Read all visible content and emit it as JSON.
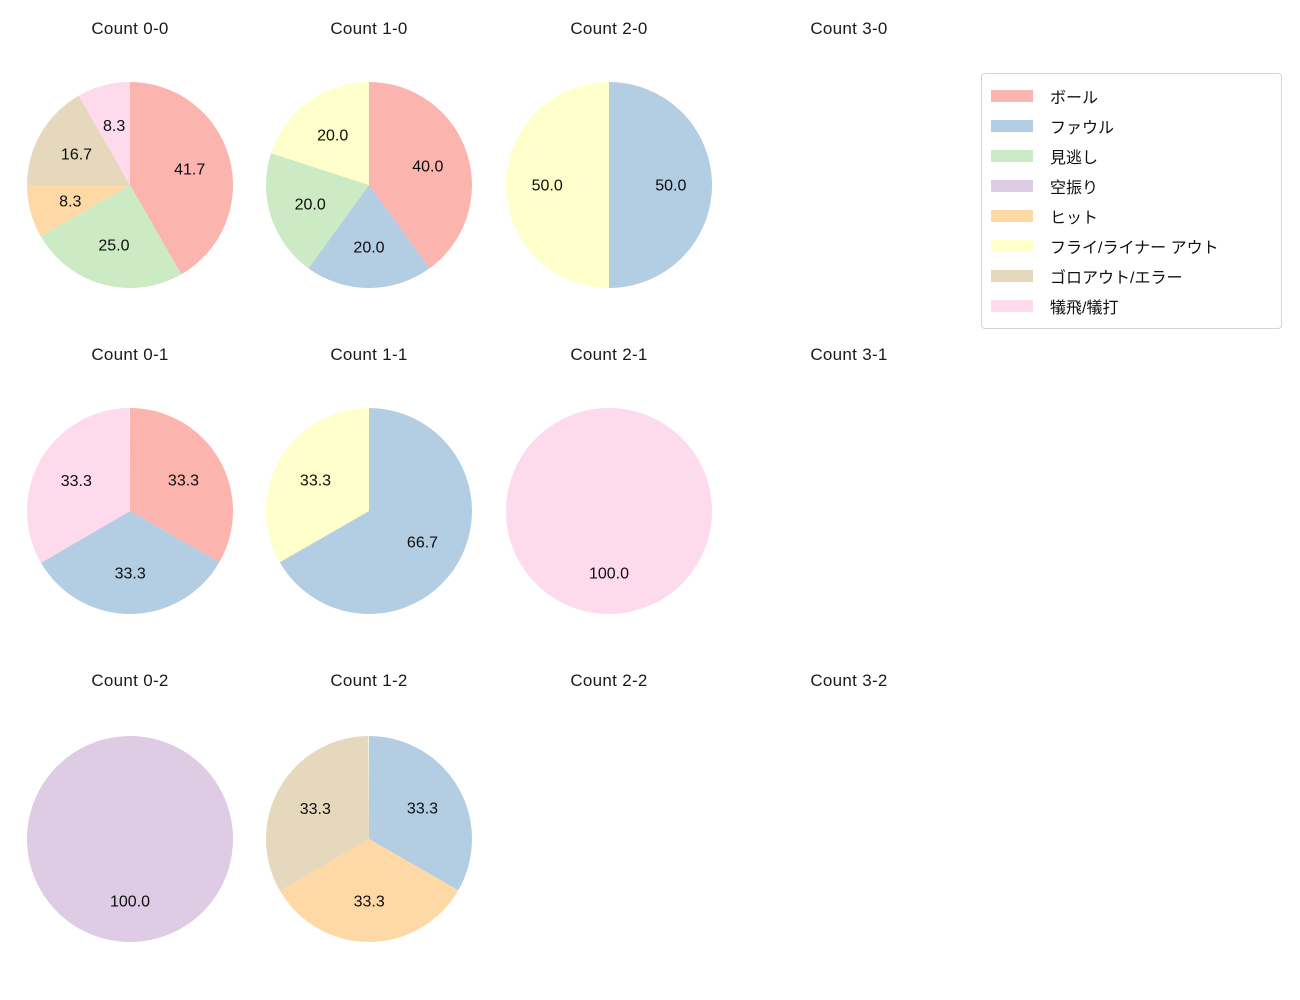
{
  "figure": {
    "background": "#ffffff",
    "text_color": "#1a1a1a"
  },
  "palette": {
    "ボール": "#fbb4ae",
    "ファウル": "#b3cde3",
    "見逃し": "#ccebc5",
    "空振り": "#decbe4",
    "ヒット": "#fed9a6",
    "フライ/ライナー アウト": "#ffffcc",
    "ゴロアウト/エラー": "#e5d8bd",
    "犠飛/犠打": "#fddaec"
  },
  "legend": {
    "position": "top-right",
    "items": [
      {
        "label": "ボール",
        "color": "#fbb4ae"
      },
      {
        "label": "ファウル",
        "color": "#b3cde3"
      },
      {
        "label": "見逃し",
        "color": "#ccebc5"
      },
      {
        "label": "空振り",
        "color": "#decbe4"
      },
      {
        "label": "ヒット",
        "color": "#fed9a6"
      },
      {
        "label": "フライ/ライナー アウト",
        "color": "#ffffcc"
      },
      {
        "label": "ゴロアウト/エラー",
        "color": "#e5d8bd"
      },
      {
        "label": "犠飛/犠打",
        "color": "#fddaec"
      }
    ]
  },
  "chart_data": [
    {
      "type": "pie",
      "title": "Count 0-0",
      "start": "top",
      "direction": "clockwise",
      "slices": [
        {
          "category": "ボール",
          "value": 41.7,
          "label": "41.7",
          "color": "#fbb4ae"
        },
        {
          "category": "見逃し",
          "value": 25.0,
          "label": "25.0",
          "color": "#ccebc5"
        },
        {
          "category": "ヒット",
          "value": 8.3,
          "label": "8.3",
          "color": "#fed9a6"
        },
        {
          "category": "ゴロアウト/エラー",
          "value": 16.7,
          "label": "16.7",
          "color": "#e5d8bd"
        },
        {
          "category": "犠飛/犠打",
          "value": 8.3,
          "label": "8.3",
          "color": "#fddaec"
        }
      ]
    },
    {
      "type": "pie",
      "title": "Count 1-0",
      "start": "top",
      "direction": "clockwise",
      "slices": [
        {
          "category": "ボール",
          "value": 40.0,
          "label": "40.0",
          "color": "#fbb4ae"
        },
        {
          "category": "ファウル",
          "value": 20.0,
          "label": "20.0",
          "color": "#b3cde3"
        },
        {
          "category": "見逃し",
          "value": 20.0,
          "label": "20.0",
          "color": "#ccebc5"
        },
        {
          "category": "フライ/ライナー アウト",
          "value": 20.0,
          "label": "20.0",
          "color": "#ffffcc"
        }
      ]
    },
    {
      "type": "pie",
      "title": "Count 2-0",
      "start": "top",
      "direction": "clockwise",
      "slices": [
        {
          "category": "ファウル",
          "value": 50.0,
          "label": "50.0",
          "color": "#b3cde3"
        },
        {
          "category": "フライ/ライナー アウト",
          "value": 50.0,
          "label": "50.0",
          "color": "#ffffcc"
        }
      ]
    },
    {
      "type": "pie",
      "title": "Count 3-0",
      "start": "top",
      "direction": "clockwise",
      "slices": []
    },
    {
      "type": "pie",
      "title": "Count 0-1",
      "start": "top",
      "direction": "clockwise",
      "slices": [
        {
          "category": "ボール",
          "value": 33.3,
          "label": "33.3",
          "color": "#fbb4ae"
        },
        {
          "category": "ファウル",
          "value": 33.3,
          "label": "33.3",
          "color": "#b3cde3"
        },
        {
          "category": "犠飛/犠打",
          "value": 33.3,
          "label": "33.3",
          "color": "#fddaec"
        }
      ]
    },
    {
      "type": "pie",
      "title": "Count 1-1",
      "start": "top",
      "direction": "clockwise",
      "slices": [
        {
          "category": "ファウル",
          "value": 66.7,
          "label": "66.7",
          "color": "#b3cde3"
        },
        {
          "category": "フライ/ライナー アウト",
          "value": 33.3,
          "label": "33.3",
          "color": "#ffffcc"
        }
      ]
    },
    {
      "type": "pie",
      "title": "Count 2-1",
      "start": "top",
      "direction": "clockwise",
      "slices": [
        {
          "category": "犠飛/犠打",
          "value": 100.0,
          "label": "100.0",
          "color": "#fddaec"
        }
      ]
    },
    {
      "type": "pie",
      "title": "Count 3-1",
      "start": "top",
      "direction": "clockwise",
      "slices": []
    },
    {
      "type": "pie",
      "title": "Count 0-2",
      "start": "top",
      "direction": "clockwise",
      "slices": [
        {
          "category": "空振り",
          "value": 100.0,
          "label": "100.0",
          "color": "#decbe4"
        }
      ]
    },
    {
      "type": "pie",
      "title": "Count 1-2",
      "start": "top",
      "direction": "clockwise",
      "slices": [
        {
          "category": "ファウル",
          "value": 33.3,
          "label": "33.3",
          "color": "#b3cde3"
        },
        {
          "category": "ヒット",
          "value": 33.3,
          "label": "33.3",
          "color": "#fed9a6"
        },
        {
          "category": "ゴロアウト/エラー",
          "value": 33.3,
          "label": "33.3",
          "color": "#e5d8bd"
        }
      ]
    },
    {
      "type": "pie",
      "title": "Count 2-2",
      "start": "top",
      "direction": "clockwise",
      "slices": []
    },
    {
      "type": "pie",
      "title": "Count 3-2",
      "start": "top",
      "direction": "clockwise",
      "slices": []
    }
  ]
}
